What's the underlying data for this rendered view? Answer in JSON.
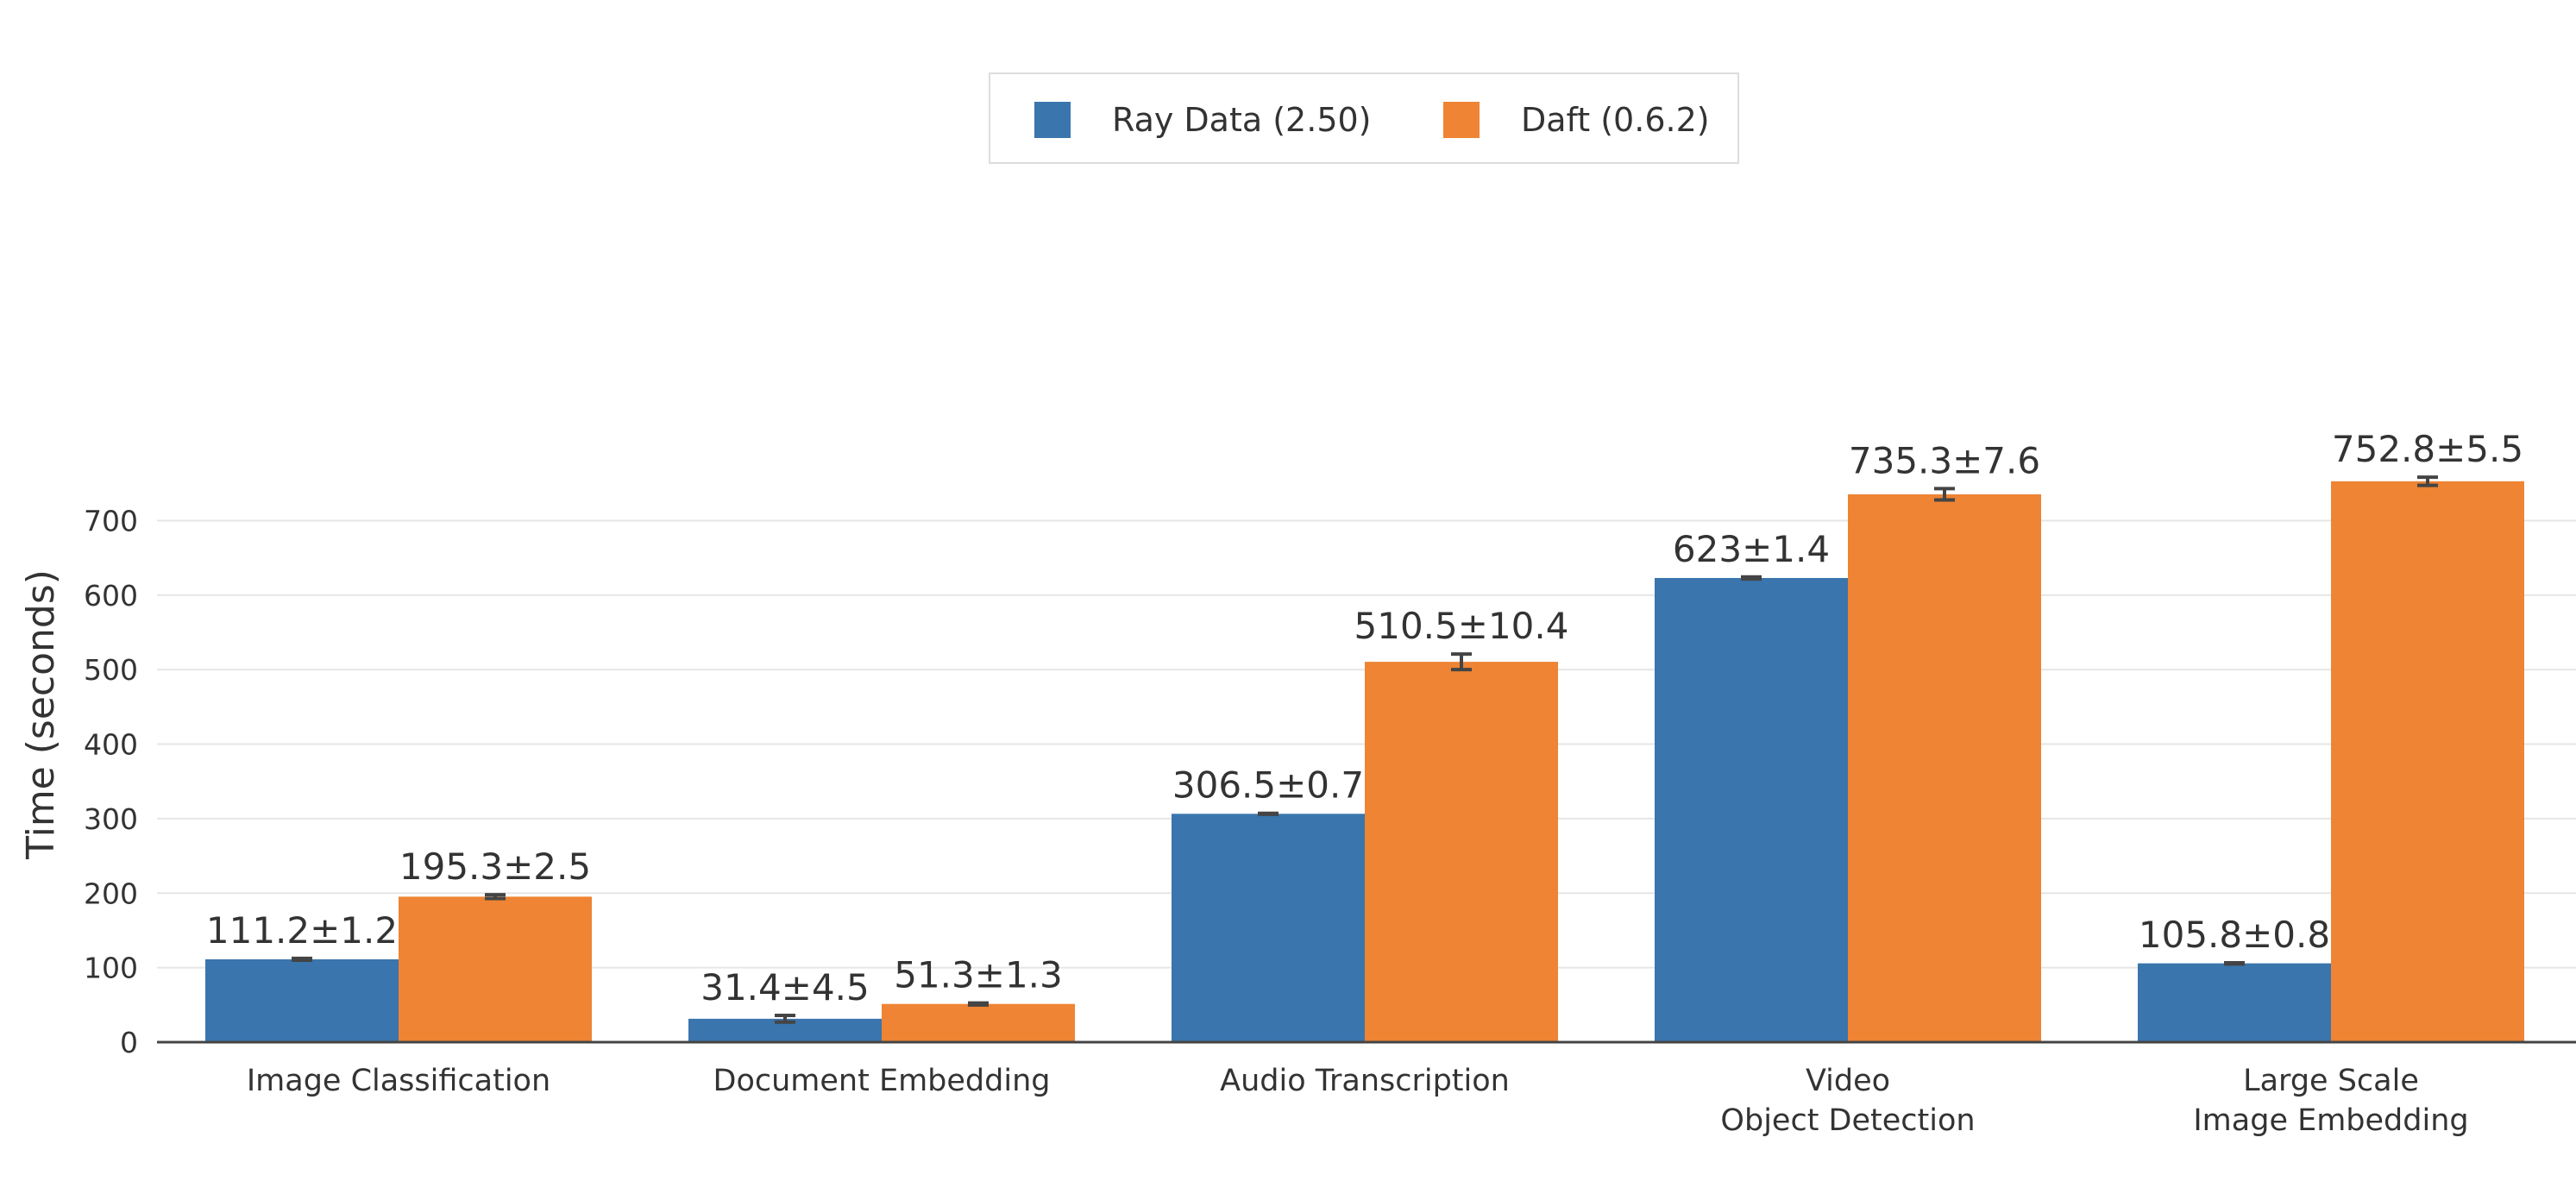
{
  "chart_data": {
    "type": "bar",
    "title": "",
    "xlabel": "",
    "ylabel": "Time (seconds)",
    "ylim": [
      0,
      790
    ],
    "yticks": [
      0,
      100,
      200,
      300,
      400,
      500,
      600,
      700
    ],
    "grid": true,
    "legend_position": "top-center",
    "categories": [
      [
        "Image Classification"
      ],
      [
        "Document Embedding"
      ],
      [
        "Audio Transcription"
      ],
      [
        "Video",
        "Object Detection"
      ],
      [
        "Large Scale",
        "Image Embedding"
      ]
    ],
    "series": [
      {
        "name": "Ray Data (2.50)",
        "color": "#3a75ad",
        "values": [
          111.2,
          31.4,
          306.5,
          623,
          105.8
        ],
        "errors": [
          1.2,
          4.5,
          0.7,
          1.4,
          0.8
        ],
        "labels": [
          "111.2±1.2",
          "31.4±4.5",
          "306.5±0.7",
          "623±1.4",
          "105.8±0.8"
        ]
      },
      {
        "name": "Daft (0.6.2)",
        "color": "#ee8434",
        "values": [
          195.3,
          51.3,
          510.5,
          735.3,
          752.8
        ],
        "errors": [
          2.5,
          1.3,
          10.4,
          7.6,
          5.5
        ],
        "labels": [
          "195.3±2.5",
          "51.3±1.3",
          "510.5±10.4",
          "735.3±7.6",
          "752.8±5.5"
        ]
      }
    ]
  }
}
